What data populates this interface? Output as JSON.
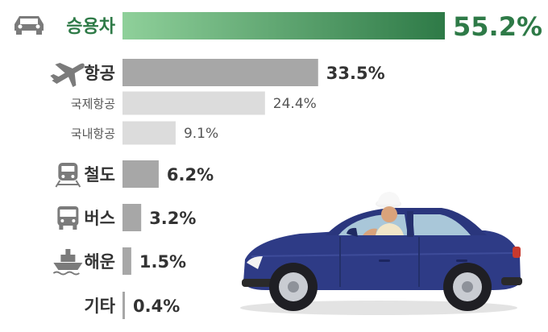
{
  "chart_data": {
    "type": "bar",
    "orientation": "horizontal",
    "categories": [
      "승용차",
      "항공",
      "국제항공",
      "국내항공",
      "철도",
      "버스",
      "해운",
      "기타"
    ],
    "values": [
      55.2,
      33.5,
      24.4,
      9.1,
      6.2,
      3.2,
      1.5,
      0.4
    ],
    "value_labels": [
      "55.2%",
      "33.5%",
      "24.4%",
      "9.1%",
      "6.2%",
      "3.2%",
      "1.5%",
      "0.4%"
    ],
    "icons": [
      "car-icon",
      "airplane-icon",
      "",
      "",
      "train-icon",
      "bus-icon",
      "ship-icon",
      ""
    ],
    "sub_categories": [
      "국제항공",
      "국내항공"
    ],
    "highlight_category": "승용차",
    "colors": {
      "highlight_start": "#8fd09a",
      "highlight_end": "#2e7a47",
      "highlight_text": "#2e7a47",
      "main_bar": "#a7a7a7",
      "sub_bar": "#dcdcdc",
      "icon": "#7b7b7b",
      "text": "#333333",
      "sub_text": "#555555"
    }
  }
}
